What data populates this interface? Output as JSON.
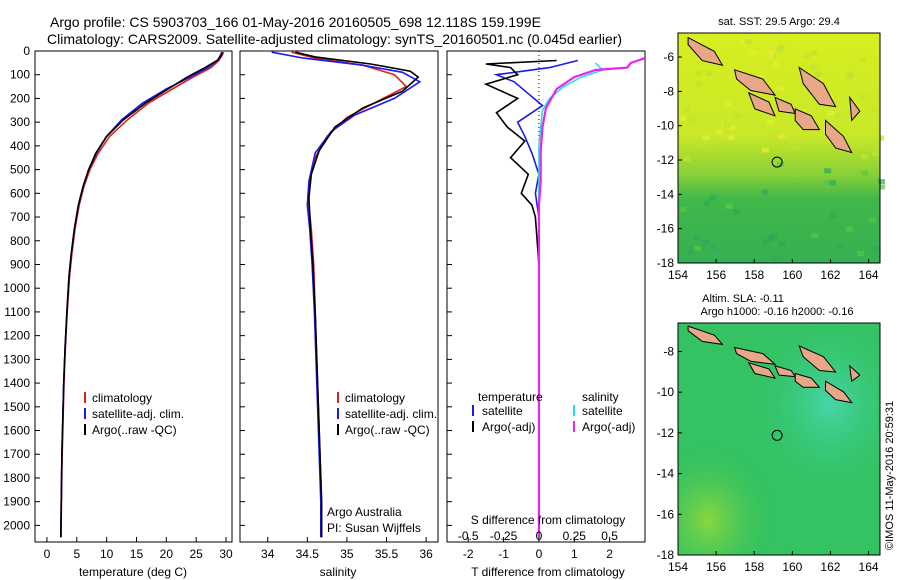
{
  "title": {
    "line1": "Argo profile: CS 5903703_166 01-May-2016 20160505_698 12.118S 159.199E",
    "line2": "Climatology: CARS2009. Satellite-adjusted climatology: synTS_20160501.nc (0.045d earlier)"
  },
  "credit": "©IMOS 11-May-2016 20:59:31",
  "colors": {
    "climatology": "#e0201a",
    "satellite": "#1a1aee",
    "argo": "#000000",
    "sal_satellite": "#22e0e0",
    "sal_argo": "#ee22ee"
  },
  "depth_axis": {
    "ticks": [
      0,
      100,
      200,
      300,
      400,
      500,
      600,
      700,
      800,
      900,
      1000,
      1100,
      1200,
      1300,
      1400,
      1500,
      1600,
      1700,
      1800,
      1900,
      2000
    ],
    "range": [
      0,
      2070
    ]
  },
  "chart_data": [
    {
      "type": "line",
      "name": "temperature",
      "xlabel": "temperature (deg C)",
      "xlim": [
        -2,
        31
      ],
      "xticks": [
        0,
        5,
        10,
        15,
        20,
        25,
        30
      ],
      "legend": [
        "climatology",
        "satellite-adj. clim.",
        "Argo(..raw -QC)"
      ],
      "series": [
        {
          "name": "climatology",
          "color": "#e0201a",
          "points": [
            [
              29.6,
              5
            ],
            [
              29.3,
              20
            ],
            [
              28.8,
              40
            ],
            [
              27.5,
              70
            ],
            [
              24.5,
              110
            ],
            [
              21,
              160
            ],
            [
              17,
              220
            ],
            [
              13.5,
              290
            ],
            [
              10.5,
              360
            ],
            [
              8.6,
              430
            ],
            [
              7.2,
              500
            ],
            [
              6.2,
              570
            ],
            [
              5.4,
              650
            ],
            [
              4.7,
              750
            ],
            [
              4.2,
              850
            ],
            [
              3.8,
              950
            ],
            [
              3.4,
              1100
            ],
            [
              3.1,
              1250
            ],
            [
              2.85,
              1400
            ],
            [
              2.7,
              1550
            ],
            [
              2.55,
              1700
            ],
            [
              2.45,
              1850
            ],
            [
              2.4,
              1950
            ],
            [
              2.35,
              2050
            ]
          ]
        },
        {
          "name": "satellite-adj. clim.",
          "color": "#1a1aee",
          "points": [
            [
              29.3,
              5
            ],
            [
              29.0,
              20
            ],
            [
              28.6,
              40
            ],
            [
              27,
              70
            ],
            [
              24,
              110
            ],
            [
              20,
              160
            ],
            [
              16,
              220
            ],
            [
              12.5,
              290
            ],
            [
              10,
              360
            ],
            [
              8.3,
              430
            ],
            [
              7,
              500
            ],
            [
              6.1,
              570
            ],
            [
              5.3,
              650
            ],
            [
              4.6,
              750
            ],
            [
              4.1,
              850
            ],
            [
              3.7,
              950
            ],
            [
              3.35,
              1100
            ],
            [
              3.05,
              1250
            ],
            [
              2.8,
              1400
            ],
            [
              2.65,
              1550
            ],
            [
              2.5,
              1700
            ],
            [
              2.42,
              1850
            ],
            [
              2.37,
              1950
            ],
            [
              2.33,
              2050
            ]
          ]
        },
        {
          "name": "Argo(..raw -QC)",
          "color": "#000000",
          "points": [
            [
              29.4,
              5
            ],
            [
              29.2,
              20
            ],
            [
              28.5,
              40
            ],
            [
              26.5,
              70
            ],
            [
              23.5,
              110
            ],
            [
              20.3,
              160
            ],
            [
              16.5,
              220
            ],
            [
              12.8,
              290
            ],
            [
              10,
              360
            ],
            [
              8.2,
              430
            ],
            [
              7,
              500
            ],
            [
              6.05,
              570
            ],
            [
              5.25,
              650
            ],
            [
              4.6,
              750
            ],
            [
              4.1,
              850
            ],
            [
              3.7,
              950
            ],
            [
              3.35,
              1100
            ],
            [
              3.05,
              1250
            ],
            [
              2.8,
              1400
            ],
            [
              2.65,
              1550
            ],
            [
              2.5,
              1700
            ],
            [
              2.42,
              1850
            ],
            [
              2.37,
              1950
            ],
            [
              2.33,
              2050
            ]
          ]
        }
      ]
    },
    {
      "type": "line",
      "name": "salinity",
      "xlabel": "salinity",
      "xlim": [
        33.65,
        36.15
      ],
      "xticks": [
        34,
        34.5,
        35,
        35.5,
        36
      ],
      "legend": [
        "climatology",
        "satellite-adj. clim.",
        "Argo(..raw -QC)"
      ],
      "annotation": [
        "Argo Australia",
        "PI: Susan Wijffels"
      ],
      "series": [
        {
          "name": "climatology",
          "color": "#e0201a",
          "points": [
            [
              34.3,
              5
            ],
            [
              34.6,
              30
            ],
            [
              35.2,
              60
            ],
            [
              35.6,
              100
            ],
            [
              35.75,
              150
            ],
            [
              35.4,
              210
            ],
            [
              35.0,
              280
            ],
            [
              34.75,
              360
            ],
            [
              34.6,
              450
            ],
            [
              34.52,
              550
            ],
            [
              34.52,
              650
            ],
            [
              34.55,
              750
            ],
            [
              34.58,
              900
            ],
            [
              34.6,
              1100
            ],
            [
              34.62,
              1300
            ],
            [
              34.64,
              1500
            ],
            [
              34.66,
              1700
            ],
            [
              34.68,
              1900
            ],
            [
              34.68,
              2050
            ]
          ]
        },
        {
          "name": "satellite-adj. clim.",
          "color": "#1a1aee",
          "points": [
            [
              34.05,
              5
            ],
            [
              34.45,
              30
            ],
            [
              35.2,
              60
            ],
            [
              35.7,
              90
            ],
            [
              35.92,
              130
            ],
            [
              35.6,
              200
            ],
            [
              35.1,
              270
            ],
            [
              34.8,
              340
            ],
            [
              34.6,
              430
            ],
            [
              34.52,
              550
            ],
            [
              34.5,
              650
            ],
            [
              34.53,
              750
            ],
            [
              34.56,
              900
            ],
            [
              34.59,
              1100
            ],
            [
              34.61,
              1300
            ],
            [
              34.63,
              1500
            ],
            [
              34.65,
              1700
            ],
            [
              34.67,
              1900
            ],
            [
              34.67,
              2050
            ]
          ]
        },
        {
          "name": "Argo(..raw -QC)",
          "color": "#000000",
          "points": [
            [
              34.35,
              5
            ],
            [
              34.6,
              25
            ],
            [
              35.3,
              55
            ],
            [
              35.8,
              85
            ],
            [
              35.9,
              110
            ],
            [
              35.7,
              170
            ],
            [
              35.2,
              240
            ],
            [
              34.85,
              320
            ],
            [
              34.65,
              420
            ],
            [
              34.55,
              520
            ],
            [
              34.52,
              620
            ],
            [
              34.54,
              750
            ],
            [
              34.57,
              900
            ],
            [
              34.6,
              1100
            ],
            [
              34.62,
              1300
            ],
            [
              34.64,
              1500
            ],
            [
              34.66,
              1700
            ],
            [
              34.68,
              1900
            ],
            [
              34.68,
              2050
            ]
          ]
        }
      ]
    },
    {
      "type": "line",
      "name": "difference",
      "xlabel": "T difference from climatology",
      "xlabel_top": "S difference from climatology",
      "xlim": [
        -2.6,
        3.0
      ],
      "xticks": [
        -2,
        -1,
        0,
        1,
        2
      ],
      "sticks": [
        {
          "label": "-0.5",
          "value": -0.5
        },
        {
          "label": "-0.25",
          "value": -0.25
        },
        {
          "label": "0",
          "value": 0
        },
        {
          "label": "0.25",
          "value": 0.25
        },
        {
          "label": "0.5",
          "value": 0.5
        }
      ],
      "legend_temp": {
        "title": "temperature",
        "items": [
          "satellite",
          "Argo(-adj)"
        ]
      },
      "legend_sal": {
        "title": "salinity",
        "items": [
          "satellite",
          "Argo(-adj)"
        ]
      },
      "series": [
        {
          "name": "T satellite",
          "color": "#1a1aee",
          "points": [
            [
              1.1,
              40
            ],
            [
              0.3,
              70
            ],
            [
              -1.2,
              100
            ],
            [
              -0.7,
              130
            ],
            [
              -0.3,
              180
            ],
            [
              0.1,
              230
            ],
            [
              -0.6,
              300
            ],
            [
              -0.4,
              360
            ],
            [
              -0.2,
              430
            ],
            [
              0,
              520
            ],
            [
              -0.1,
              600
            ],
            [
              0,
              700
            ],
            [
              0,
              900
            ],
            [
              0,
              1200
            ],
            [
              0,
              1500
            ],
            [
              0,
              1800
            ],
            [
              0,
              2050
            ]
          ]
        },
        {
          "name": "T Argo(-adj)",
          "color": "#000000",
          "points": [
            [
              0.5,
              40
            ],
            [
              -1.5,
              55
            ],
            [
              -0.8,
              70
            ],
            [
              -0.6,
              100
            ],
            [
              -1.5,
              140
            ],
            [
              -0.6,
              200
            ],
            [
              -1.2,
              260
            ],
            [
              -0.9,
              320
            ],
            [
              -0.4,
              380
            ],
            [
              -0.8,
              450
            ],
            [
              -0.3,
              520
            ],
            [
              -0.5,
              600
            ],
            [
              -0.2,
              650
            ],
            [
              -0.1,
              700
            ],
            [
              0,
              900
            ],
            [
              0,
              1200
            ],
            [
              0,
              1500
            ],
            [
              0,
              1800
            ],
            [
              0,
              2050
            ]
          ]
        },
        {
          "name": "S satellite",
          "color": "#22e0e0",
          "points": [
            [
              1.6,
              50
            ],
            [
              1.8,
              80
            ],
            [
              1.2,
              110
            ],
            [
              0.7,
              150
            ],
            [
              0.3,
              200
            ],
            [
              0.1,
              250
            ],
            [
              0.05,
              320
            ],
            [
              0,
              400
            ],
            [
              0,
              600
            ],
            [
              0,
              900
            ],
            [
              0,
              1200
            ],
            [
              0,
              1500
            ],
            [
              0,
              1800
            ],
            [
              0,
              2050
            ]
          ]
        },
        {
          "name": "S Argo(-adj)",
          "color": "#ee22ee",
          "points": [
            [
              3.0,
              30
            ],
            [
              2.6,
              50
            ],
            [
              2.5,
              70
            ],
            [
              1.6,
              80
            ],
            [
              1.0,
              110
            ],
            [
              0.5,
              160
            ],
            [
              0.2,
              240
            ],
            [
              0.1,
              320
            ],
            [
              0.05,
              420
            ],
            [
              0.05,
              550
            ],
            [
              0,
              650
            ],
            [
              0,
              800
            ],
            [
              0,
              1000
            ],
            [
              0,
              1300
            ],
            [
              0,
              1600
            ],
            [
              0,
              1900
            ],
            [
              0,
              2050
            ]
          ]
        }
      ]
    },
    {
      "type": "heatmap",
      "name": "sst_map",
      "title": "sat. SST: 29.5  Argo: 29.4",
      "xlim": [
        154,
        164.6
      ],
      "ylim": [
        -18,
        -4.6
      ],
      "xticks": [
        154,
        156,
        158,
        160,
        162,
        164
      ],
      "yticks": [
        -6,
        -8,
        -10,
        -12,
        -14,
        -16,
        -18
      ],
      "marker": {
        "lon": 159.2,
        "lat": -12.12
      }
    },
    {
      "type": "heatmap",
      "name": "sla_map",
      "title": "Altim. SLA: -0.11",
      "subtitle": "Argo h1000: -0.16  h2000: -0.16",
      "xlim": [
        154,
        164.6
      ],
      "ylim": [
        -18,
        -6.6
      ],
      "xticks": [
        154,
        156,
        158,
        160,
        162,
        164
      ],
      "yticks": [
        -8,
        -10,
        -12,
        -14,
        -16,
        -18
      ],
      "marker": {
        "lon": 159.2,
        "lat": -12.12
      }
    }
  ]
}
